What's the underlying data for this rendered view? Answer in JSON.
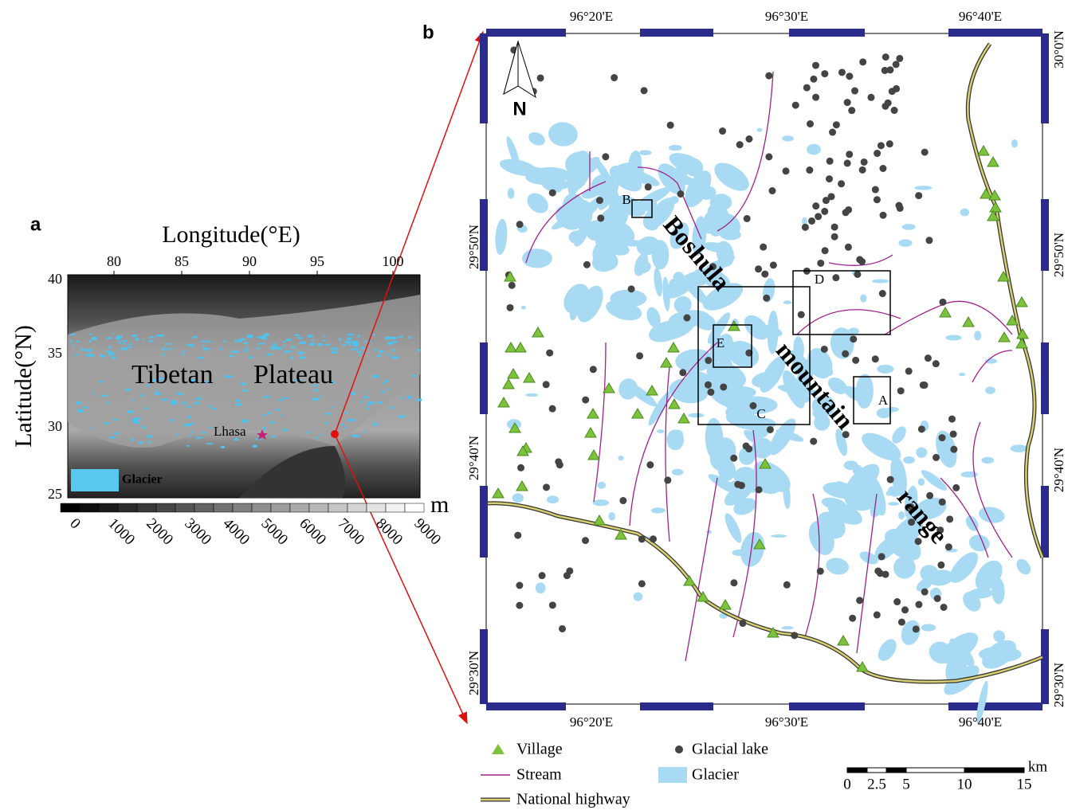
{
  "panel_a": {
    "label": "a",
    "x_axis_title": "Longitude(°E)",
    "x_ticks": [
      "80",
      "85",
      "90",
      "95",
      "100"
    ],
    "y_axis_title": "Latitude(°N)",
    "y_ticks": [
      "40",
      "35",
      "30",
      "25"
    ],
    "region_label": [
      "Tibetan",
      "Plateau"
    ],
    "city": "Lhasa",
    "legend": "Glacier",
    "colorbar_ticks": [
      "0",
      "1000",
      "2000",
      "3000",
      "4000",
      "5000",
      "6000",
      "7000",
      "8000",
      "9000"
    ],
    "colorbar_unit": "m"
  },
  "panel_b": {
    "label": "b",
    "top_ticks": [
      "96°20'E",
      "96°30'E",
      "96°40'E"
    ],
    "bottom_ticks": [
      "96°20'E",
      "96°30'E",
      "96°40'E"
    ],
    "left_ticks": [
      "29°50'N",
      "29°40'N",
      "29°30'N"
    ],
    "right_ticks": [
      "30°0'N",
      "29°50'N",
      "29°40'N",
      "29°30'N"
    ],
    "north": "N",
    "boxes": [
      "A",
      "B",
      "C",
      "D",
      "E"
    ],
    "range_label": [
      "Boshula",
      "mountain",
      "range"
    ],
    "legend": {
      "village": "Village",
      "lake": "Glacial lake",
      "stream": "Stream",
      "glacier": "Glacier",
      "highway": "National highway"
    },
    "scale_bar": {
      "ticks": [
        "0",
        "2.5",
        "5",
        "10",
        "15"
      ],
      "unit": "km"
    }
  }
}
